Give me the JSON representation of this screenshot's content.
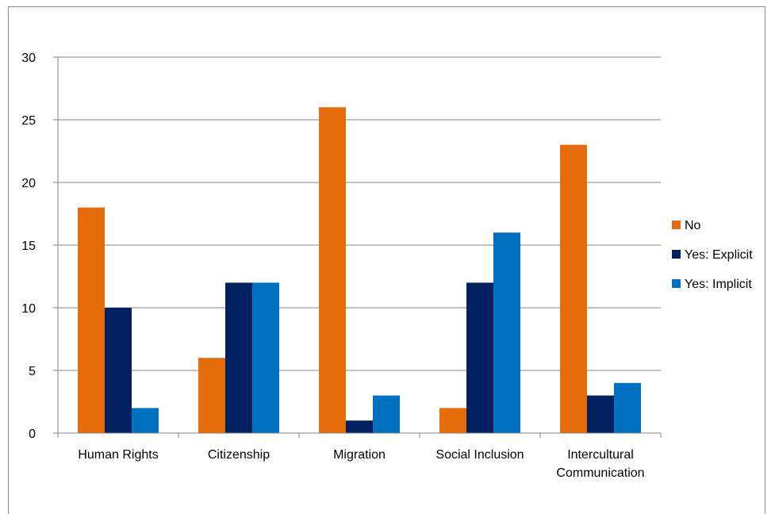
{
  "chart_data": {
    "type": "bar",
    "title": "",
    "xlabel": "",
    "ylabel": "",
    "categories": [
      [
        "Human Rights"
      ],
      [
        "Citizenship"
      ],
      [
        "Migration"
      ],
      [
        "Social Inclusion"
      ],
      [
        "Intercultural",
        "Communication"
      ]
    ],
    "series": [
      {
        "name": "No",
        "color": "#e46c0a",
        "values": [
          18,
          6,
          26,
          2,
          23
        ]
      },
      {
        "name": "Yes: Explicit",
        "color": "#002060",
        "values": [
          10,
          12,
          1,
          12,
          3
        ]
      },
      {
        "name": "Yes: Implicit",
        "color": "#0070c0",
        "values": [
          2,
          12,
          3,
          16,
          4
        ]
      }
    ],
    "ylim": [
      0,
      30
    ],
    "yticks": [
      "0",
      "5",
      "10",
      "15",
      "20",
      "25",
      "30"
    ],
    "grid": true,
    "legend_position": "right"
  }
}
